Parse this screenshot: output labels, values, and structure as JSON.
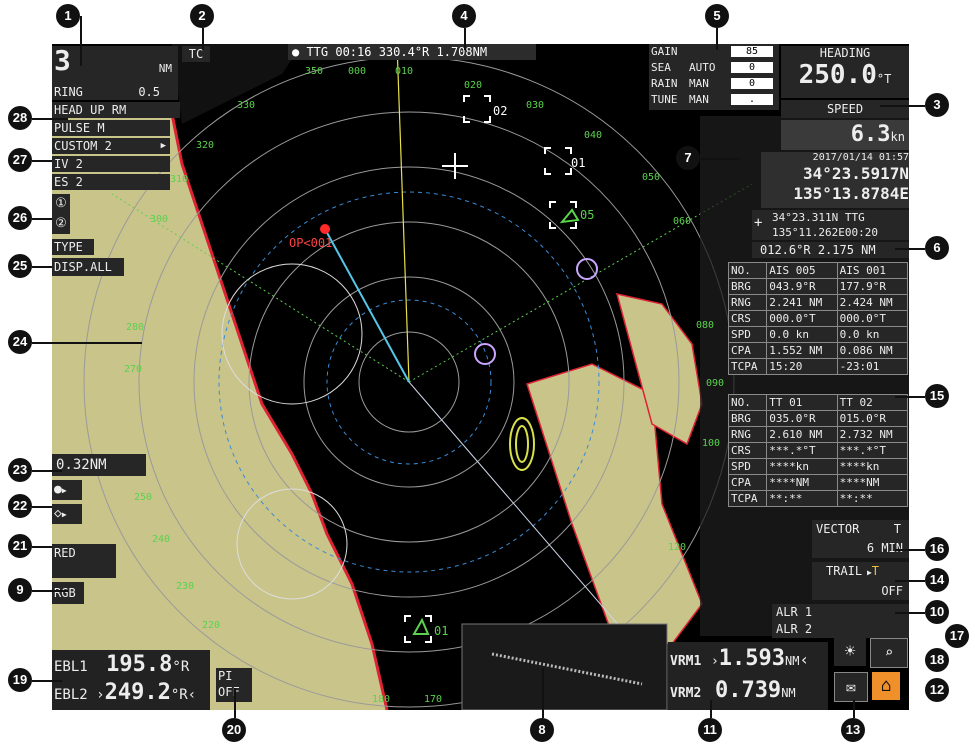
{
  "top_bar": {
    "cursor_readout": "● TTG 00:16 330.4°R 1.708NM"
  },
  "range": {
    "value": "3",
    "unit": "NM",
    "ring_label": "RING",
    "ring_value": "0.5"
  },
  "mode_tag": "TC",
  "presentation": "HEAD UP RM",
  "pulse": "PULSE M",
  "custom": "CUSTOM 2",
  "iv": "IV 2",
  "es": "ES 2",
  "type_label": "TYPE",
  "disp_all": "DISP.ALL",
  "gain": {
    "rows": [
      {
        "label": "GAIN",
        "mode": "",
        "value": "85"
      },
      {
        "label": "SEA",
        "mode": "AUTO",
        "value": "0"
      },
      {
        "label": "RAIN",
        "mode": "MAN",
        "value": "0"
      },
      {
        "label": "TUNE",
        "mode": "MAN",
        "value": "."
      }
    ]
  },
  "heading": {
    "label": "HEADING",
    "value": "250.0",
    "unit": "°T"
  },
  "speed": {
    "label": "SPEED",
    "value": "6.3",
    "unit": "kn"
  },
  "own_position": {
    "date": "2017/01/14 01:57",
    "lat": "34°23.5917N",
    "lon": "135°13.8784E"
  },
  "cursor_pos": {
    "lat": "34°23.311N",
    "lon": "135°11.262E",
    "ttg_label": "TTG",
    "ttg": "00:20",
    "brg": "012.6°R",
    "rng": "2.175 NM"
  },
  "ais_table": {
    "headers": [
      "NO.",
      "AIS 005",
      "AIS 001"
    ],
    "rows": [
      [
        "BRG",
        "043.9°R",
        "177.9°R"
      ],
      [
        "RNG",
        "2.241 NM",
        "2.424 NM"
      ],
      [
        "CRS",
        "000.0°T",
        "000.0°T"
      ],
      [
        "SPD",
        "0.0 kn",
        "0.0 kn"
      ],
      [
        "CPA",
        "1.552 NM",
        "0.086 NM"
      ],
      [
        "TCPA",
        "15:20",
        "-23:01"
      ]
    ]
  },
  "tt_table": {
    "headers": [
      "NO.",
      "TT 01",
      "TT 02"
    ],
    "rows": [
      [
        "BRG",
        "035.0°R",
        "015.0°R"
      ],
      [
        "RNG",
        "2.610 NM",
        "2.732 NM"
      ],
      [
        "CRS",
        "***.*°T",
        "***.*°T"
      ],
      [
        "SPD",
        "****kn",
        "****kn"
      ],
      [
        "CPA",
        "****NM",
        "****NM"
      ],
      [
        "TCPA",
        "**:**",
        "**:**"
      ]
    ]
  },
  "vector": {
    "label": "VECTOR",
    "mode": "T",
    "value": "6 MIN"
  },
  "trail": {
    "label": "TRAIL",
    "mode": "T",
    "value": "OFF"
  },
  "alerts": [
    "ALR 1",
    "ALR 2"
  ],
  "range_value_box": "0.32NM",
  "red_label": "RED",
  "rgb_label": "RGB",
  "ebl": {
    "ebl1_label": "EBL1",
    "ebl1_value": "195.8",
    "ebl1_unit": "°R",
    "ebl2_label": "EBL2",
    "ebl2_value": "249.2",
    "ebl2_unit": "°R"
  },
  "pi": {
    "label": "PI",
    "state": "OFF"
  },
  "vrm": {
    "vrm1_label": "VRM1",
    "vrm1_value": "1.593",
    "vrm1_unit": "NM",
    "vrm2_label": "VRM2",
    "vrm2_value": "0.739",
    "vrm2_unit": "NM"
  },
  "bearing_scale": [
    "350",
    "000",
    "010",
    "020",
    "030",
    "040",
    "050",
    "060",
    "330",
    "320",
    "310",
    "300",
    "280",
    "270",
    "250",
    "240",
    "230",
    "220",
    "080",
    "090",
    "100",
    "120",
    "180",
    "170"
  ],
  "targets": {
    "wp": "OP<001",
    "t02": "02",
    "t01": "01",
    "t05": "05",
    "t01b": "01"
  },
  "callouts": [
    "1",
    "2",
    "3",
    "4",
    "5",
    "6",
    "7",
    "8",
    "9",
    "10",
    "11",
    "12",
    "13",
    "14",
    "15",
    "16",
    "17",
    "18",
    "19",
    "20",
    "21",
    "22",
    "23",
    "24",
    "25",
    "26",
    "27",
    "28"
  ],
  "colors": {
    "land": "#c9c48a",
    "sea": "#000000",
    "panel": "#262626",
    "accent_green": "#5bd24d",
    "accent_orange": "#f0902a"
  }
}
